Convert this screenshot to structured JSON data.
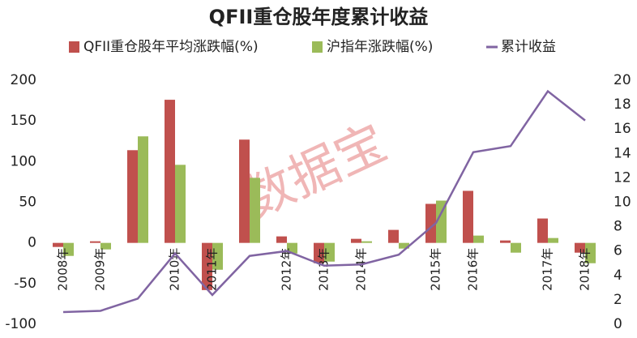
{
  "chart_data": {
    "type": "bar_line",
    "title": "QFII重仓股年度累计收益",
    "watermark": "数据宝",
    "categories": [
      "2008年",
      "2009年",
      null,
      "2010年",
      "2011年",
      null,
      "2012年",
      "2013年",
      "2014年",
      null,
      "2015年",
      "2016年",
      null,
      "2017年",
      "2018年"
    ],
    "series": [
      {
        "name": "QFII重仓股年平均涨跌幅(%)",
        "type": "bar",
        "color": "#c0504d",
        "values": [
          -5,
          2,
          114,
          176,
          -58,
          127,
          8,
          -25,
          5,
          16,
          48,
          64,
          3,
          30,
          -12
        ]
      },
      {
        "name": "沪指年涨跌幅(%)",
        "type": "bar",
        "color": "#9bbb59",
        "values": [
          -16,
          -8,
          131,
          96,
          -33,
          80,
          -13,
          -23,
          2,
          -7,
          52,
          9,
          -12,
          6,
          -25
        ]
      },
      {
        "name": "累计收益",
        "type": "line",
        "axis": "y2",
        "color": "#8064a2",
        "values": [
          1.0,
          1.1,
          2.1,
          5.8,
          2.4,
          5.6,
          6.0,
          4.8,
          4.9,
          5.7,
          8.3,
          14.1,
          14.6,
          19.1,
          16.7
        ]
      }
    ],
    "ylim": [
      -100,
      200
    ],
    "yticks": [
      -100,
      -50,
      0,
      50,
      100,
      150,
      200
    ],
    "y2lim": [
      0,
      20
    ],
    "y2ticks": [
      0,
      2,
      4,
      6,
      8,
      10,
      12,
      14,
      16,
      18,
      20
    ],
    "legend": "top"
  }
}
